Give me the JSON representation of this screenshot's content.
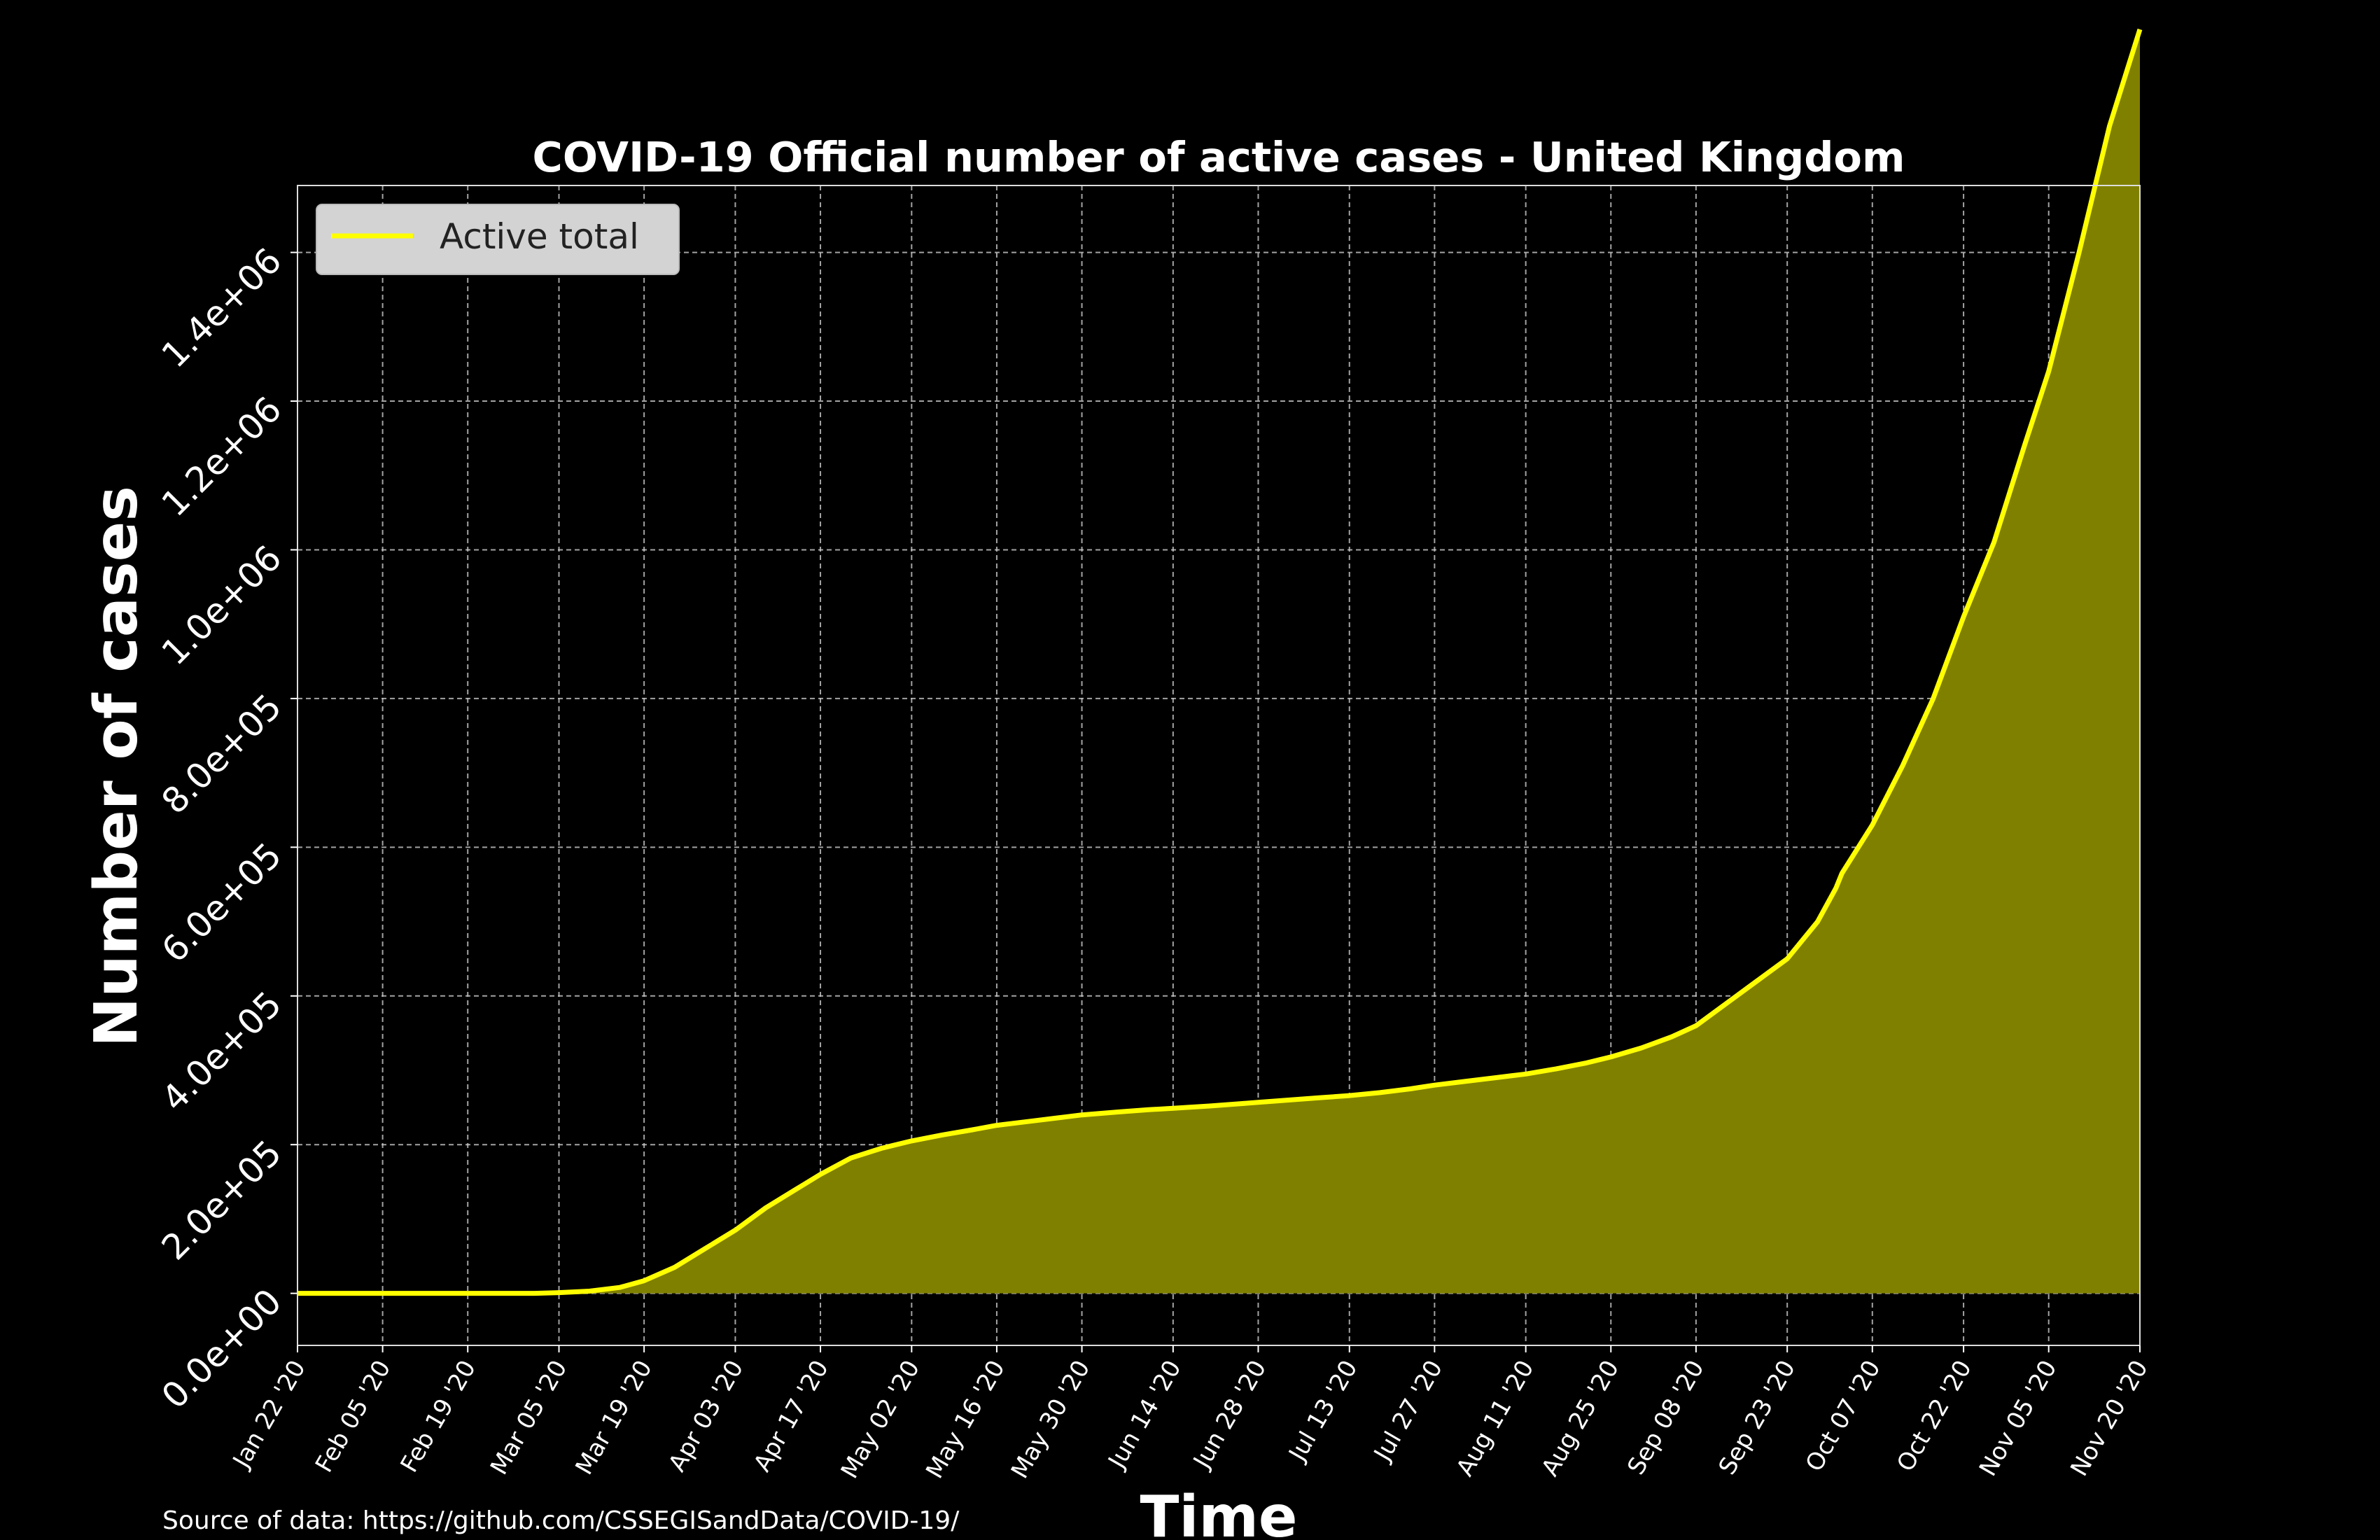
{
  "chart_data": {
    "type": "area",
    "title": "COVID-19 Official number of active cases - United Kingdom",
    "xlabel": "Time",
    "ylabel": "Number of cases",
    "source": "Source of data: https://github.com/CSSEGISandData/COVID-19/",
    "xlim": [
      "2020-01-22",
      "2020-11-20"
    ],
    "ylim": [
      -70000,
      1490000
    ],
    "grid": true,
    "legend_position": "top-left",
    "colors": {
      "line": "#ffff00",
      "fill": "#808000",
      "background": "#000000",
      "grid": "#cccccc",
      "legend_bg": "#d3d3d3"
    },
    "yticks": [
      {
        "value": 0,
        "label": "0.0e+00"
      },
      {
        "value": 200000,
        "label": "2.0e+05"
      },
      {
        "value": 400000,
        "label": "4.0e+05"
      },
      {
        "value": 600000,
        "label": "6.0e+05"
      },
      {
        "value": 800000,
        "label": "8.0e+05"
      },
      {
        "value": 1000000,
        "label": "1.0e+06"
      },
      {
        "value": 1200000,
        "label": "1.2e+06"
      },
      {
        "value": 1400000,
        "label": "1.4e+06"
      }
    ],
    "xticks": [
      {
        "date": "2020-01-22",
        "label": "Jan 22 '20"
      },
      {
        "date": "2020-02-05",
        "label": "Feb 05 '20"
      },
      {
        "date": "2020-02-19",
        "label": "Feb 19 '20"
      },
      {
        "date": "2020-03-05",
        "label": "Mar 05 '20"
      },
      {
        "date": "2020-03-19",
        "label": "Mar 19 '20"
      },
      {
        "date": "2020-04-03",
        "label": "Apr 03 '20"
      },
      {
        "date": "2020-04-17",
        "label": "Apr 17 '20"
      },
      {
        "date": "2020-05-02",
        "label": "May 02 '20"
      },
      {
        "date": "2020-05-16",
        "label": "May 16 '20"
      },
      {
        "date": "2020-05-30",
        "label": "May 30 '20"
      },
      {
        "date": "2020-06-14",
        "label": "Jun 14 '20"
      },
      {
        "date": "2020-06-28",
        "label": "Jun 28 '20"
      },
      {
        "date": "2020-07-13",
        "label": "Jul 13 '20"
      },
      {
        "date": "2020-07-27",
        "label": "Jul 27 '20"
      },
      {
        "date": "2020-08-11",
        "label": "Aug 11 '20"
      },
      {
        "date": "2020-08-25",
        "label": "Aug 25 '20"
      },
      {
        "date": "2020-09-08",
        "label": "Sep 08 '20"
      },
      {
        "date": "2020-09-23",
        "label": "Sep 23 '20"
      },
      {
        "date": "2020-10-07",
        "label": "Oct 07 '20"
      },
      {
        "date": "2020-10-22",
        "label": "Oct 22 '20"
      },
      {
        "date": "2020-11-05",
        "label": "Nov 05 '20"
      },
      {
        "date": "2020-11-20",
        "label": "Nov 20 '20"
      }
    ],
    "series": [
      {
        "name": "Active total",
        "x": [
          "2020-01-22",
          "2020-02-05",
          "2020-02-19",
          "2020-03-01",
          "2020-03-05",
          "2020-03-10",
          "2020-03-15",
          "2020-03-19",
          "2020-03-24",
          "2020-03-29",
          "2020-04-03",
          "2020-04-08",
          "2020-04-13",
          "2020-04-17",
          "2020-04-22",
          "2020-04-27",
          "2020-05-02",
          "2020-05-07",
          "2020-05-12",
          "2020-05-16",
          "2020-05-21",
          "2020-05-26",
          "2020-05-30",
          "2020-06-05",
          "2020-06-10",
          "2020-06-14",
          "2020-06-20",
          "2020-06-25",
          "2020-06-28",
          "2020-07-03",
          "2020-07-08",
          "2020-07-13",
          "2020-07-18",
          "2020-07-23",
          "2020-07-27",
          "2020-08-01",
          "2020-08-06",
          "2020-08-11",
          "2020-08-16",
          "2020-08-21",
          "2020-08-25",
          "2020-08-30",
          "2020-09-04",
          "2020-09-08",
          "2020-09-13",
          "2020-09-18",
          "2020-09-23",
          "2020-09-28",
          "2020-10-01",
          "2020-10-02",
          "2020-10-07",
          "2020-10-12",
          "2020-10-17",
          "2020-10-22",
          "2020-10-27",
          "2020-11-01",
          "2020-11-05",
          "2020-11-10",
          "2020-11-15",
          "2020-11-20"
        ],
        "y": [
          0,
          0,
          0,
          0,
          1000,
          3000,
          8000,
          17000,
          35000,
          60000,
          85000,
          115000,
          140000,
          160000,
          182000,
          195000,
          205000,
          213000,
          220000,
          226000,
          231000,
          236000,
          240000,
          244000,
          247000,
          249000,
          252000,
          255000,
          257000,
          260000,
          263000,
          266000,
          270000,
          275000,
          280000,
          285000,
          290000,
          295000,
          302000,
          310000,
          318000,
          330000,
          345000,
          360000,
          390000,
          420000,
          450000,
          500000,
          545000,
          565000,
          630000,
          710000,
          800000,
          910000,
          1010000,
          1140000,
          1240000,
          1400000,
          1570000,
          1700000
        ]
      }
    ]
  }
}
